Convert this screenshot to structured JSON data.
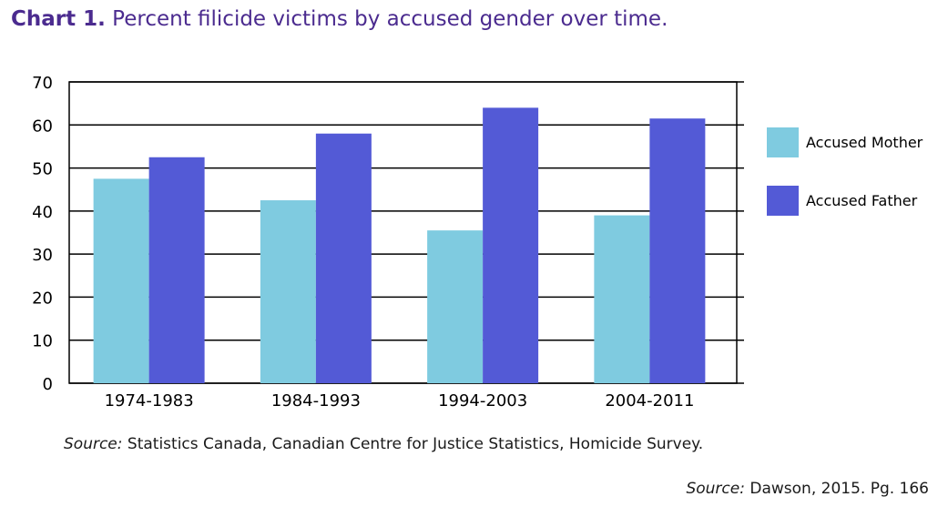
{
  "header": {
    "title_number": "Chart 1.",
    "title_text": "Percent filicide victims by accused gender over time."
  },
  "chart_data": {
    "type": "bar",
    "title": "Chart 1. Percent filicide victims by accused gender over time.",
    "categories": [
      "1974-1983",
      "1984-1993",
      "1994-2003",
      "2004-2011"
    ],
    "series": [
      {
        "name": "Accused Mother",
        "values": [
          47.5,
          42.5,
          35.5,
          39
        ],
        "color": "#7fcbe0"
      },
      {
        "name": "Accused Father",
        "values": [
          52.5,
          58,
          64,
          61.5
        ],
        "color": "#535ad6"
      }
    ],
    "ylim": [
      0,
      70
    ],
    "yticks": [
      0,
      10,
      20,
      30,
      40,
      50,
      60,
      70
    ],
    "grid": true,
    "legend_position": "right"
  },
  "footer": {
    "source_label": "Source:",
    "source_text": "Statistics Canada, Canadian Centre for Justice Statistics, Homicide Survey.",
    "citation_label": "Source:",
    "citation_text": "Dawson, 2015. Pg. 166"
  }
}
